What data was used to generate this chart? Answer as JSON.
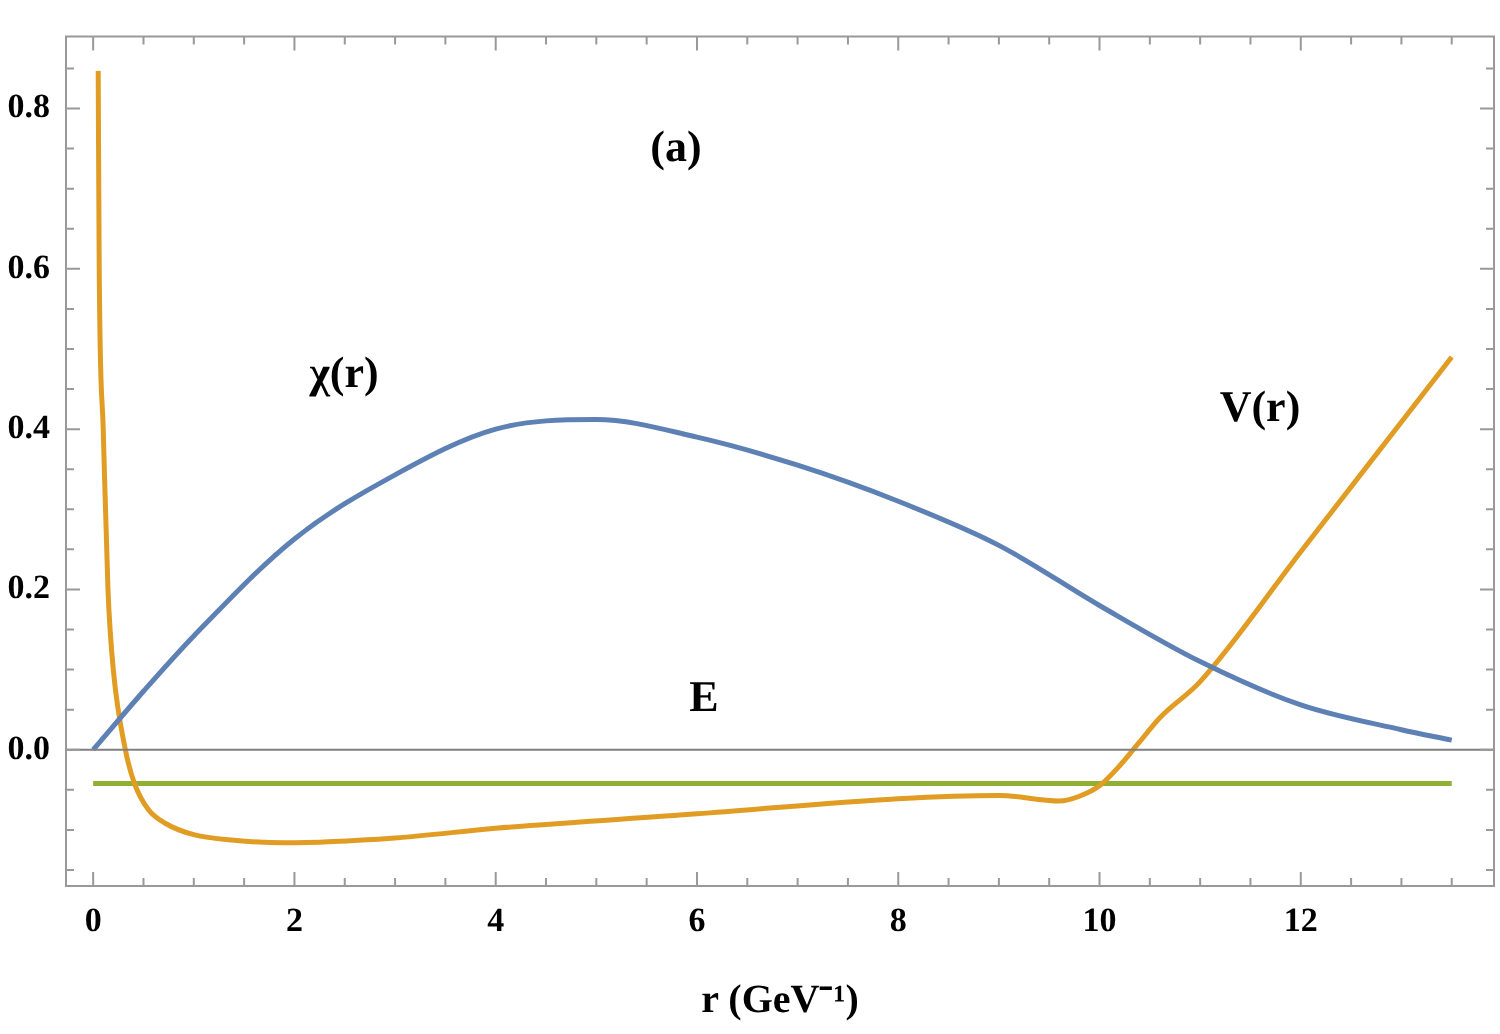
{
  "chart_data": {
    "type": "line",
    "xlabel": "r (GeV⁻¹)",
    "xlim": [
      -0.27,
      13.92
    ],
    "ylim": [
      -0.17,
      0.89
    ],
    "xticks": [
      0,
      {
        "value": 0.5,
        "label": null
      },
      {
        "value": 1,
        "label": null
      },
      {
        "value": 1.5,
        "label": null
      },
      2,
      {
        "value": 2.5,
        "label": null
      },
      {
        "value": 3,
        "label": null
      },
      {
        "value": 3.5,
        "label": null
      },
      4,
      {
        "value": 4.5,
        "label": null
      },
      {
        "value": 5,
        "label": null
      },
      {
        "value": 5.5,
        "label": null
      },
      6,
      {
        "value": 6.5,
        "label": null
      },
      {
        "value": 7,
        "label": null
      },
      {
        "value": 7.5,
        "label": null
      },
      8,
      {
        "value": 8.5,
        "label": null
      },
      {
        "value": 9,
        "label": null
      },
      {
        "value": 9.5,
        "label": null
      },
      10,
      {
        "value": 10.5,
        "label": null
      },
      {
        "value": 11,
        "label": null
      },
      {
        "value": 11.5,
        "label": null
      },
      12,
      {
        "value": 12.5,
        "label": null
      },
      {
        "value": 13,
        "label": null
      },
      {
        "value": 13.5,
        "label": null
      }
    ],
    "yticks": [
      {
        "value": -0.15,
        "label": null
      },
      {
        "value": -0.1,
        "label": null
      },
      {
        "value": -0.05,
        "label": null
      },
      {
        "value": 0,
        "label": "0.0"
      },
      {
        "value": 0.05,
        "label": null
      },
      {
        "value": 0.1,
        "label": null
      },
      {
        "value": 0.15,
        "label": null
      },
      {
        "value": 0.2,
        "label": "0.2"
      },
      {
        "value": 0.25,
        "label": null
      },
      {
        "value": 0.3,
        "label": null
      },
      {
        "value": 0.35,
        "label": null
      },
      {
        "value": 0.4,
        "label": "0.4"
      },
      {
        "value": 0.45,
        "label": null
      },
      {
        "value": 0.5,
        "label": null
      },
      {
        "value": 0.55,
        "label": null
      },
      {
        "value": 0.6,
        "label": "0.6"
      },
      {
        "value": 0.65,
        "label": null
      },
      {
        "value": 0.7,
        "label": null
      },
      {
        "value": 0.75,
        "label": null
      },
      {
        "value": 0.8,
        "label": "0.8"
      },
      {
        "value": 0.85,
        "label": null
      }
    ],
    "series": [
      {
        "name": "χ(r)",
        "color": "#5e81b5",
        "x": [
          0,
          0.5,
          1,
          2,
          3,
          4,
          5,
          6,
          7,
          8,
          9,
          10,
          11,
          12,
          13,
          13.5
        ],
        "values": [
          0,
          0.073,
          0.142,
          0.263,
          0.343,
          0.4,
          0.412,
          0.39,
          0.355,
          0.31,
          0.255,
          0.18,
          0.11,
          0.056,
          0.025,
          0.012
        ]
      },
      {
        "name": "V(r)",
        "color": "#e19c24",
        "x": [
          0.05,
          0.06,
          0.1,
          0.147,
          0.2,
          0.32,
          0.41,
          0.55,
          0.72,
          1,
          1.4,
          1.9,
          3,
          4,
          6,
          8,
          9,
          9.6,
          9.8,
          10,
          10.2,
          10.4,
          10.6,
          11,
          12,
          13,
          13.5
        ],
        "values": [
          0.847,
          0.6,
          0.4,
          0.2,
          0.1,
          0,
          -0.042,
          -0.075,
          -0.092,
          -0.106,
          -0.113,
          -0.116,
          -0.11,
          -0.098,
          -0.08,
          -0.061,
          -0.057,
          -0.064,
          -0.058,
          -0.045,
          -0.02,
          0.01,
          0.04,
          0.085,
          0.247,
          0.409,
          0.49
        ]
      },
      {
        "name": "E",
        "color": "#8fb032",
        "x": [
          0,
          13.5
        ],
        "values": [
          -0.042,
          -0.042
        ]
      }
    ],
    "ref_lines": [
      {
        "axis": "y",
        "value": 0,
        "color": "#808080"
      }
    ],
    "annotations": [
      "(a)"
    ],
    "grid": false,
    "legend": false
  }
}
